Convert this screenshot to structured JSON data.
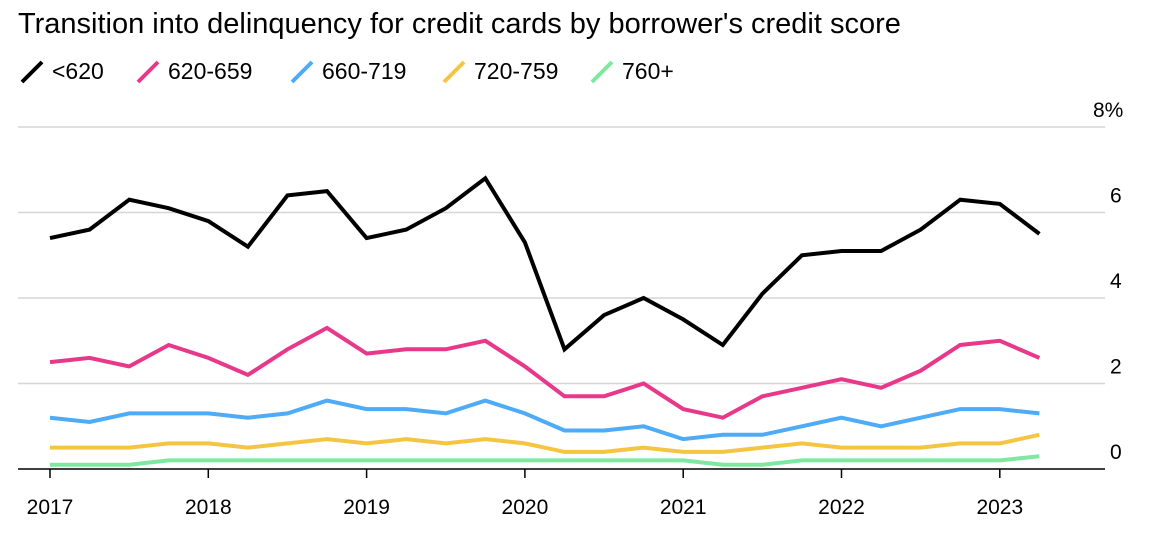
{
  "chart_data": {
    "type": "line",
    "title": "Transition into delinquency for credit cards by borrower's credit score",
    "ylim": [
      0,
      8
    ],
    "y_ticks": [
      "0",
      "2",
      "4",
      "6",
      "8%"
    ],
    "y_tick_values": [
      0,
      2,
      4,
      6,
      8
    ],
    "x_ticks": [
      "2017",
      "2018",
      "2019",
      "2020",
      "2021",
      "2022",
      "2023"
    ],
    "x_tick_values": [
      2017,
      2018,
      2019,
      2020,
      2021,
      2022,
      2023
    ],
    "xlim": [
      2016.8,
      2023.7
    ],
    "grid": true,
    "legend_position": "top-left",
    "x": [
      2017.0,
      2017.25,
      2017.5,
      2017.75,
      2018.0,
      2018.25,
      2018.5,
      2018.75,
      2019.0,
      2019.25,
      2019.5,
      2019.75,
      2020.0,
      2020.25,
      2020.5,
      2020.75,
      2021.0,
      2021.25,
      2021.5,
      2021.75,
      2022.0,
      2022.25,
      2022.5,
      2022.75,
      2023.0,
      2023.25
    ],
    "series": [
      {
        "name": "<620",
        "color": "#000000",
        "values": [
          5.4,
          5.6,
          6.3,
          6.1,
          5.8,
          5.2,
          6.4,
          6.5,
          5.4,
          5.6,
          6.1,
          6.8,
          5.3,
          2.8,
          3.6,
          4.0,
          3.5,
          2.9,
          4.1,
          5.0,
          5.1,
          5.1,
          5.6,
          6.3,
          6.2,
          5.5
        ]
      },
      {
        "name": "620-659",
        "color": "#e8388a",
        "values": [
          2.5,
          2.6,
          2.4,
          2.9,
          2.6,
          2.2,
          2.8,
          3.3,
          2.7,
          2.8,
          2.8,
          3.0,
          2.4,
          1.7,
          1.7,
          2.0,
          1.4,
          1.2,
          1.7,
          1.9,
          2.1,
          1.9,
          2.3,
          2.9,
          3.0,
          2.6
        ]
      },
      {
        "name": "660-719",
        "color": "#4dabf7",
        "values": [
          1.2,
          1.1,
          1.3,
          1.3,
          1.3,
          1.2,
          1.3,
          1.6,
          1.4,
          1.4,
          1.3,
          1.6,
          1.3,
          0.9,
          0.9,
          1.0,
          0.7,
          0.8,
          0.8,
          1.0,
          1.2,
          1.0,
          1.2,
          1.4,
          1.4,
          1.3
        ]
      },
      {
        "name": "720-759",
        "color": "#f5c542",
        "values": [
          0.5,
          0.5,
          0.5,
          0.6,
          0.6,
          0.5,
          0.6,
          0.7,
          0.6,
          0.7,
          0.6,
          0.7,
          0.6,
          0.4,
          0.4,
          0.5,
          0.4,
          0.4,
          0.5,
          0.6,
          0.5,
          0.5,
          0.5,
          0.6,
          0.6,
          0.8
        ]
      },
      {
        "name": "760+",
        "color": "#7ee8a0",
        "values": [
          0.1,
          0.1,
          0.1,
          0.2,
          0.2,
          0.2,
          0.2,
          0.2,
          0.2,
          0.2,
          0.2,
          0.2,
          0.2,
          0.2,
          0.2,
          0.2,
          0.2,
          0.1,
          0.1,
          0.2,
          0.2,
          0.2,
          0.2,
          0.2,
          0.2,
          0.3
        ]
      }
    ]
  }
}
